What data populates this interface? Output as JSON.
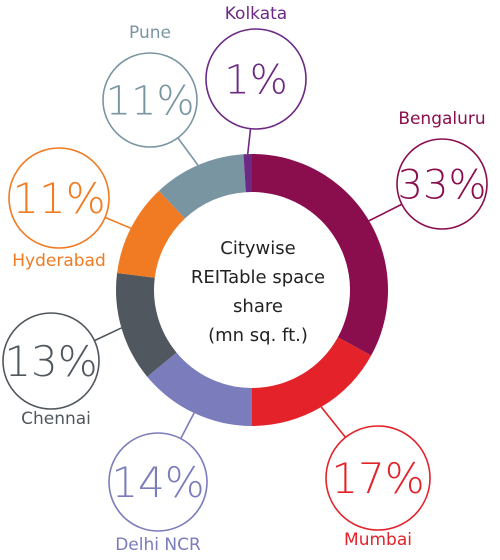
{
  "chart_data": {
    "type": "pie",
    "title": "Citywise REITable space share (mn sq. ft.)",
    "title_lines": [
      "Citywise",
      "REITable space",
      "share",
      "(mn sq. ft.)"
    ],
    "categories": [
      "Bengaluru",
      "Mumbai",
      "Delhi NCR",
      "Chennai",
      "Hyderabad",
      "Pune",
      "Kolkata"
    ],
    "values": [
      33,
      17,
      14,
      13,
      11,
      11,
      1
    ],
    "value_labels": [
      "33%",
      "17%",
      "14%",
      "13%",
      "11%",
      "11%",
      "1%"
    ],
    "colors": [
      "#8a0d4e",
      "#e32229",
      "#7a7cbc",
      "#51575e",
      "#f07b23",
      "#7a95a2",
      "#6c2a84"
    ],
    "style": "donut"
  }
}
